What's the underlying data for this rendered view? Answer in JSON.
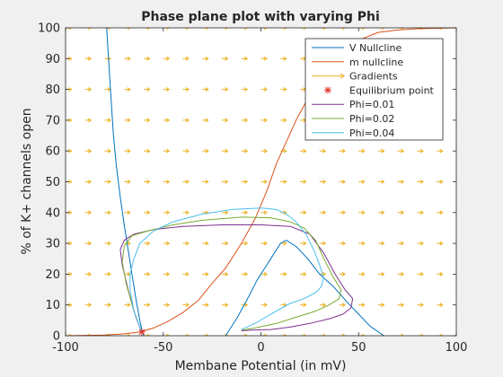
{
  "chart_data": {
    "type": "line",
    "title": "Phase plane plot with varying Phi",
    "xlabel": "Membane Potential (in mV)",
    "ylabel": "% of K+ channels open",
    "xlim": [
      -100,
      100
    ],
    "ylim": [
      0,
      100
    ],
    "xticks": [
      -100,
      -50,
      0,
      50,
      100
    ],
    "yticks": [
      0,
      10,
      20,
      30,
      40,
      50,
      60,
      70,
      80,
      90,
      100
    ],
    "grid": false,
    "legend_position": "top-right",
    "series": [
      {
        "name": "V Nullcline",
        "color": "#0072bd",
        "kind": "line",
        "segments": [
          [
            [
              -79,
              100
            ],
            [
              -77,
              80
            ],
            [
              -75.5,
              65
            ],
            [
              -74,
              55
            ],
            [
              -72,
              45
            ],
            [
              -70,
              36
            ],
            [
              -68,
              28
            ],
            [
              -66,
              20
            ],
            [
              -64,
              12
            ],
            [
              -62,
              5
            ],
            [
              -61,
              2
            ],
            [
              -60,
              0
            ]
          ],
          [
            [
              -18,
              0
            ],
            [
              -12,
              6
            ],
            [
              -6,
              13
            ],
            [
              -2,
              18
            ],
            [
              2,
              22
            ],
            [
              6,
              26
            ],
            [
              10,
              30
            ],
            [
              13,
              31
            ],
            [
              18,
              29
            ],
            [
              24,
              25
            ],
            [
              30,
              20
            ],
            [
              37,
              16
            ],
            [
              44,
              11
            ],
            [
              50,
              7
            ],
            [
              56,
              3
            ],
            [
              63,
              0
            ]
          ]
        ]
      },
      {
        "name": "m nullcline",
        "color": "#d95319",
        "kind": "line",
        "segments": [
          [
            [
              -100,
              0
            ],
            [
              -80,
              0.2
            ],
            [
              -70,
              0.6
            ],
            [
              -62,
              1.2
            ],
            [
              -55,
              2.5
            ],
            [
              -48,
              4.5
            ],
            [
              -40,
              7.5
            ],
            [
              -32,
              11.5
            ],
            [
              -25,
              17
            ],
            [
              -18,
              22
            ],
            [
              -10,
              30
            ],
            [
              -3,
              38
            ],
            [
              3,
              47
            ],
            [
              8,
              56
            ],
            [
              13,
              63
            ],
            [
              18,
              70
            ],
            [
              24,
              77
            ],
            [
              30,
              84
            ],
            [
              36,
              89
            ],
            [
              42,
              93
            ],
            [
              50,
              96
            ],
            [
              60,
              98.5
            ],
            [
              70,
              99.3
            ],
            [
              80,
              99.7
            ],
            [
              100,
              100
            ]
          ]
        ]
      },
      {
        "name": "Gradients",
        "color": "#edb120",
        "kind": "quiver",
        "x_start": -100,
        "x_step": 10,
        "x_count": 21,
        "y_start": 0,
        "y_step": 10,
        "y_count": 11,
        "arrow_dx": 3
      },
      {
        "name": "Equilibrium point",
        "color": "#e0342d",
        "kind": "marker",
        "x": -61,
        "y": 1.2
      },
      {
        "name": "Phi=0.01",
        "color": "#7e2f8e",
        "kind": "line",
        "segments": [
          [
            [
              -61,
              1.2
            ],
            [
              -64,
              6
            ],
            [
              -68,
              15
            ],
            [
              -71,
              23
            ],
            [
              -72,
              28
            ],
            [
              -70,
              31
            ],
            [
              -65,
              33
            ],
            [
              -55,
              34.5
            ],
            [
              -40,
              35.5
            ],
            [
              -20,
              36
            ],
            [
              0,
              36
            ],
            [
              15,
              35.5
            ],
            [
              25,
              33
            ],
            [
              32,
              27
            ],
            [
              38,
              20
            ],
            [
              43,
              15
            ],
            [
              47,
              12
            ],
            [
              46,
              9
            ],
            [
              42,
              7
            ],
            [
              35,
              5.5
            ],
            [
              25,
              4
            ],
            [
              15,
              2.8
            ],
            [
              5,
              2
            ],
            [
              -5,
              1.8
            ],
            [
              -10,
              1.6
            ]
          ]
        ]
      },
      {
        "name": "Phi=0.02",
        "color": "#77ac30",
        "kind": "line",
        "segments": [
          [
            [
              -61,
              1.2
            ],
            [
              -65,
              8
            ],
            [
              -69,
              17
            ],
            [
              -71,
              24
            ],
            [
              -70,
              29
            ],
            [
              -66,
              32.5
            ],
            [
              -58,
              34
            ],
            [
              -45,
              36
            ],
            [
              -30,
              37.5
            ],
            [
              -10,
              38.5
            ],
            [
              5,
              38.3
            ],
            [
              15,
              37
            ],
            [
              22,
              35
            ],
            [
              28,
              31
            ],
            [
              33,
              24
            ],
            [
              37,
              19
            ],
            [
              41,
              15
            ],
            [
              40,
              12
            ],
            [
              35,
              10
            ],
            [
              28,
              8
            ],
            [
              18,
              6
            ],
            [
              8,
              4
            ],
            [
              -3,
              2.5
            ],
            [
              -10,
              1.8
            ]
          ]
        ]
      },
      {
        "name": "Phi=0.04",
        "color": "#4dbeee",
        "kind": "line",
        "segments": [
          [
            [
              -61,
              1.2
            ],
            [
              -65,
              8
            ],
            [
              -67,
              15
            ],
            [
              -67,
              20
            ],
            [
              -65,
              25
            ],
            [
              -62,
              30
            ],
            [
              -55,
              34
            ],
            [
              -45,
              37
            ],
            [
              -30,
              39.5
            ],
            [
              -15,
              41
            ],
            [
              0,
              41.5
            ],
            [
              8,
              41
            ],
            [
              13,
              39.5
            ],
            [
              18,
              37
            ],
            [
              23,
              33
            ],
            [
              27,
              28
            ],
            [
              30,
              23
            ],
            [
              32,
              19
            ],
            [
              31,
              16
            ],
            [
              28,
              14
            ],
            [
              22,
              12
            ],
            [
              15,
              10.5
            ],
            [
              5,
              7
            ],
            [
              -3,
              4
            ],
            [
              -10,
              2
            ]
          ]
        ]
      }
    ]
  }
}
